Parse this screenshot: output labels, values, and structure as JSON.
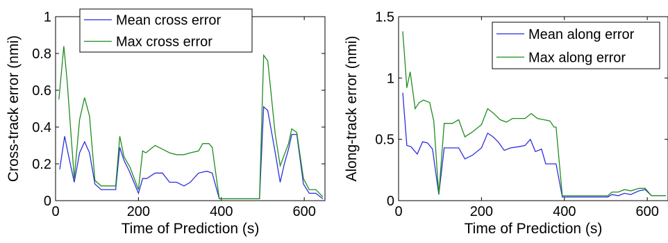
{
  "chart_data": [
    {
      "type": "line",
      "title": "",
      "xlabel": "Time of Prediction (s)",
      "ylabel": "Cross-track error (nmi)",
      "xlim": [
        0,
        650
      ],
      "ylim": [
        0,
        1
      ],
      "xticks": [
        0,
        200,
        400,
        600
      ],
      "xtick_labels": [
        "0",
        "200",
        "400",
        "600"
      ],
      "yticks": [
        0,
        0.2,
        0.4,
        0.6,
        0.8,
        1
      ],
      "ytick_labels": [
        "0",
        "0.2",
        "0.4",
        "0.6",
        "0.8",
        "1"
      ],
      "grid": false,
      "legend_position": "top-left",
      "series": [
        {
          "name": "Mean cross error",
          "color": "#2d2de0",
          "points": [
            [
              10,
              0.17
            ],
            [
              22,
              0.35
            ],
            [
              30,
              0.26
            ],
            [
              45,
              0.1
            ],
            [
              58,
              0.26
            ],
            [
              70,
              0.32
            ],
            [
              82,
              0.26
            ],
            [
              95,
              0.09
            ],
            [
              110,
              0.06
            ],
            [
              128,
              0.06
            ],
            [
              145,
              0.06
            ],
            [
              155,
              0.29
            ],
            [
              165,
              0.22
            ],
            [
              178,
              0.16
            ],
            [
              200,
              0.04
            ],
            [
              210,
              0.12
            ],
            [
              220,
              0.12
            ],
            [
              240,
              0.15
            ],
            [
              258,
              0.15
            ],
            [
              275,
              0.1
            ],
            [
              292,
              0.1
            ],
            [
              310,
              0.08
            ],
            [
              325,
              0.1
            ],
            [
              345,
              0.15
            ],
            [
              365,
              0.16
            ],
            [
              378,
              0.15
            ],
            [
              395,
              0.01
            ],
            [
              410,
              0.01
            ],
            [
              450,
              0.01
            ],
            [
              480,
              0.01
            ],
            [
              492,
              0.01
            ],
            [
              502,
              0.51
            ],
            [
              512,
              0.49
            ],
            [
              530,
              0.26
            ],
            [
              542,
              0.1
            ],
            [
              552,
              0.2
            ],
            [
              562,
              0.28
            ],
            [
              570,
              0.36
            ],
            [
              582,
              0.36
            ],
            [
              598,
              0.09
            ],
            [
              612,
              0.04
            ],
            [
              628,
              0.04
            ],
            [
              645,
              0.01
            ]
          ]
        },
        {
          "name": "Max cross error",
          "color": "#1e8c1e",
          "points": [
            [
              8,
              0.55
            ],
            [
              20,
              0.84
            ],
            [
              28,
              0.65
            ],
            [
              45,
              0.12
            ],
            [
              58,
              0.44
            ],
            [
              70,
              0.56
            ],
            [
              82,
              0.46
            ],
            [
              95,
              0.11
            ],
            [
              110,
              0.08
            ],
            [
              128,
              0.08
            ],
            [
              145,
              0.08
            ],
            [
              155,
              0.35
            ],
            [
              165,
              0.24
            ],
            [
              180,
              0.18
            ],
            [
              200,
              0.06
            ],
            [
              210,
              0.27
            ],
            [
              218,
              0.26
            ],
            [
              240,
              0.3
            ],
            [
              258,
              0.28
            ],
            [
              275,
              0.26
            ],
            [
              292,
              0.25
            ],
            [
              310,
              0.25
            ],
            [
              325,
              0.26
            ],
            [
              345,
              0.27
            ],
            [
              355,
              0.31
            ],
            [
              370,
              0.31
            ],
            [
              378,
              0.29
            ],
            [
              395,
              0.01
            ],
            [
              410,
              0.01
            ],
            [
              450,
              0.01
            ],
            [
              480,
              0.01
            ],
            [
              492,
              0.01
            ],
            [
              502,
              0.79
            ],
            [
              512,
              0.76
            ],
            [
              530,
              0.36
            ],
            [
              542,
              0.19
            ],
            [
              552,
              0.25
            ],
            [
              562,
              0.31
            ],
            [
              570,
              0.39
            ],
            [
              582,
              0.37
            ],
            [
              598,
              0.12
            ],
            [
              612,
              0.06
            ],
            [
              628,
              0.06
            ],
            [
              645,
              0.02
            ]
          ]
        }
      ]
    },
    {
      "type": "line",
      "title": "",
      "xlabel": "Time of Prediction (s)",
      "ylabel": "Along-track error (nmi)",
      "xlim": [
        0,
        650
      ],
      "ylim": [
        0,
        1.5
      ],
      "xticks": [
        0,
        200,
        400,
        600
      ],
      "xtick_labels": [
        "0",
        "200",
        "400",
        "600"
      ],
      "yticks": [
        0,
        0.5,
        1,
        1.5
      ],
      "ytick_labels": [
        "0",
        "0.5",
        "1",
        "1.5"
      ],
      "grid": false,
      "legend_position": "top-right",
      "series": [
        {
          "name": "Mean along error",
          "color": "#2d2de0",
          "points": [
            [
              10,
              0.88
            ],
            [
              20,
              0.45
            ],
            [
              30,
              0.44
            ],
            [
              45,
              0.38
            ],
            [
              58,
              0.48
            ],
            [
              70,
              0.47
            ],
            [
              82,
              0.42
            ],
            [
              97,
              0.05
            ],
            [
              110,
              0.43
            ],
            [
              128,
              0.43
            ],
            [
              145,
              0.43
            ],
            [
              160,
              0.34
            ],
            [
              178,
              0.37
            ],
            [
              200,
              0.43
            ],
            [
              215,
              0.55
            ],
            [
              228,
              0.52
            ],
            [
              240,
              0.48
            ],
            [
              255,
              0.41
            ],
            [
              270,
              0.43
            ],
            [
              290,
              0.44
            ],
            [
              305,
              0.45
            ],
            [
              318,
              0.5
            ],
            [
              330,
              0.4
            ],
            [
              345,
              0.42
            ],
            [
              355,
              0.3
            ],
            [
              370,
              0.3
            ],
            [
              380,
              0.3
            ],
            [
              395,
              0.03
            ],
            [
              420,
              0.03
            ],
            [
              460,
              0.03
            ],
            [
              505,
              0.03
            ],
            [
              515,
              0.05
            ],
            [
              530,
              0.04
            ],
            [
              545,
              0.06
            ],
            [
              560,
              0.05
            ],
            [
              580,
              0.08
            ],
            [
              595,
              0.09
            ],
            [
              610,
              0.04
            ],
            [
              645,
              0.04
            ]
          ]
        },
        {
          "name": "Max along error",
          "color": "#1e8c1e",
          "points": [
            [
              10,
              1.38
            ],
            [
              20,
              0.92
            ],
            [
              28,
              1.05
            ],
            [
              40,
              0.75
            ],
            [
              50,
              0.8
            ],
            [
              60,
              0.82
            ],
            [
              75,
              0.8
            ],
            [
              85,
              0.65
            ],
            [
              97,
              0.05
            ],
            [
              110,
              0.63
            ],
            [
              130,
              0.63
            ],
            [
              145,
              0.66
            ],
            [
              160,
              0.52
            ],
            [
              178,
              0.56
            ],
            [
              200,
              0.62
            ],
            [
              215,
              0.75
            ],
            [
              230,
              0.71
            ],
            [
              245,
              0.66
            ],
            [
              260,
              0.64
            ],
            [
              275,
              0.67
            ],
            [
              290,
              0.67
            ],
            [
              305,
              0.67
            ],
            [
              320,
              0.71
            ],
            [
              335,
              0.67
            ],
            [
              350,
              0.66
            ],
            [
              365,
              0.65
            ],
            [
              375,
              0.6
            ],
            [
              380,
              0.6
            ],
            [
              395,
              0.04
            ],
            [
              420,
              0.04
            ],
            [
              460,
              0.04
            ],
            [
              505,
              0.04
            ],
            [
              515,
              0.07
            ],
            [
              530,
              0.07
            ],
            [
              545,
              0.09
            ],
            [
              560,
              0.08
            ],
            [
              580,
              0.1
            ],
            [
              595,
              0.1
            ],
            [
              610,
              0.04
            ],
            [
              645,
              0.04
            ]
          ]
        }
      ]
    }
  ]
}
